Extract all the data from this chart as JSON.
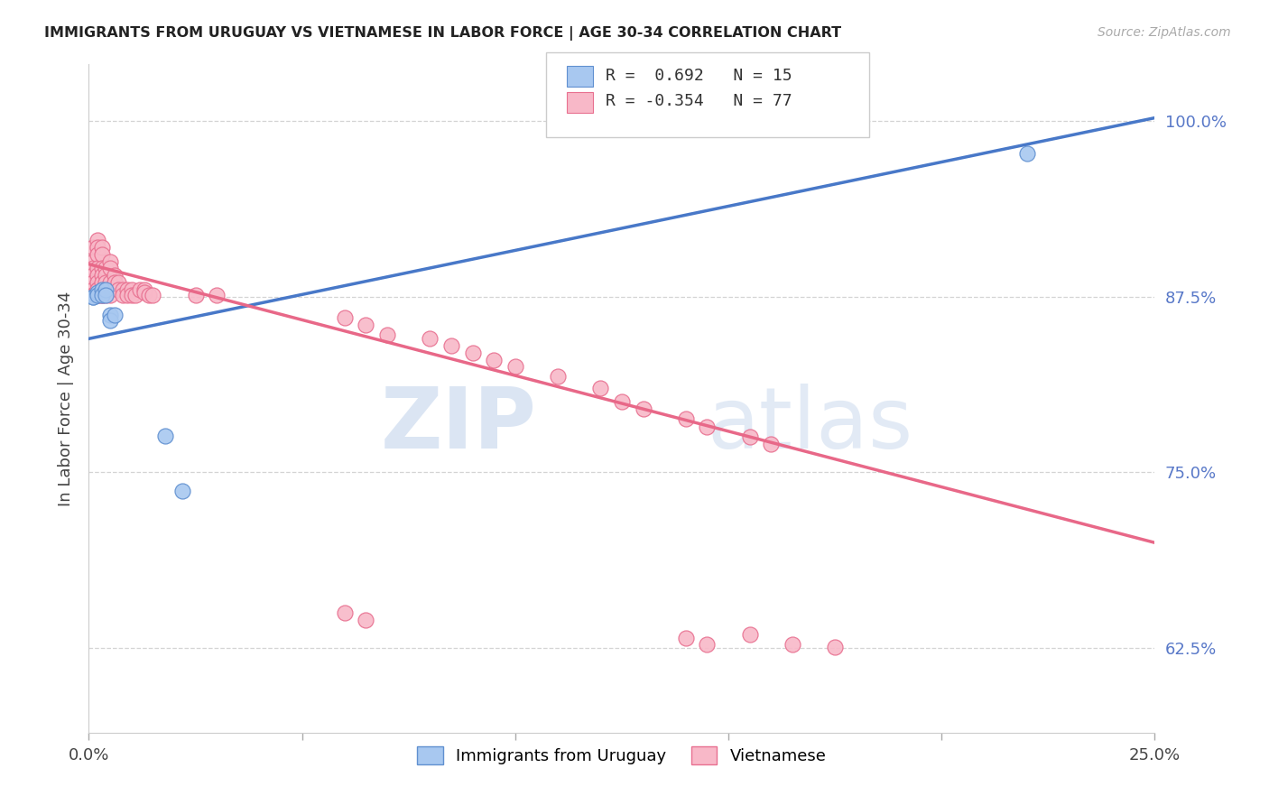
{
  "title": "IMMIGRANTS FROM URUGUAY VS VIETNAMESE IN LABOR FORCE | AGE 30-34 CORRELATION CHART",
  "source": "Source: ZipAtlas.com",
  "ylabel": "In Labor Force | Age 30-34",
  "yticks": [
    0.625,
    0.75,
    0.875,
    1.0
  ],
  "ytick_labels": [
    "62.5%",
    "75.0%",
    "87.5%",
    "100.0%"
  ],
  "xticks": [
    0.0,
    0.05,
    0.1,
    0.15,
    0.2,
    0.25
  ],
  "xmin": 0.0,
  "xmax": 0.25,
  "ymin": 0.565,
  "ymax": 1.04,
  "watermark_line1": "ZIP",
  "watermark_line2": "atlas",
  "uruguay_color": "#a8c8f0",
  "vietnamese_color": "#f8b8c8",
  "uruguay_edge_color": "#6090d0",
  "vietnamese_edge_color": "#e87090",
  "blue_line_color": "#4878c8",
  "pink_line_color": "#e86888",
  "grid_color": "#d0d0d0",
  "tick_label_color": "#5878c8",
  "uruguay_points": [
    [
      0.001,
      0.875
    ],
    [
      0.001,
      0.875
    ],
    [
      0.002,
      0.878
    ],
    [
      0.002,
      0.876
    ],
    [
      0.003,
      0.88
    ],
    [
      0.003,
      0.876
    ],
    [
      0.004,
      0.88
    ],
    [
      0.004,
      0.876
    ],
    [
      0.005,
      0.862
    ],
    [
      0.005,
      0.858
    ],
    [
      0.006,
      0.862
    ],
    [
      0.018,
      0.776
    ],
    [
      0.022,
      0.737
    ],
    [
      0.22,
      0.977
    ]
  ],
  "vietnamese_points": [
    [
      0.001,
      0.91
    ],
    [
      0.001,
      0.9
    ],
    [
      0.001,
      0.895
    ],
    [
      0.001,
      0.89
    ],
    [
      0.001,
      0.885
    ],
    [
      0.001,
      0.88
    ],
    [
      0.001,
      0.876
    ],
    [
      0.001,
      0.876
    ],
    [
      0.002,
      0.915
    ],
    [
      0.002,
      0.91
    ],
    [
      0.002,
      0.905
    ],
    [
      0.002,
      0.895
    ],
    [
      0.002,
      0.89
    ],
    [
      0.002,
      0.885
    ],
    [
      0.002,
      0.88
    ],
    [
      0.002,
      0.88
    ],
    [
      0.002,
      0.876
    ],
    [
      0.002,
      0.876
    ],
    [
      0.002,
      0.876
    ],
    [
      0.003,
      0.91
    ],
    [
      0.003,
      0.905
    ],
    [
      0.003,
      0.895
    ],
    [
      0.003,
      0.89
    ],
    [
      0.003,
      0.885
    ],
    [
      0.003,
      0.88
    ],
    [
      0.003,
      0.876
    ],
    [
      0.003,
      0.876
    ],
    [
      0.004,
      0.895
    ],
    [
      0.004,
      0.89
    ],
    [
      0.004,
      0.885
    ],
    [
      0.004,
      0.88
    ],
    [
      0.004,
      0.876
    ],
    [
      0.005,
      0.9
    ],
    [
      0.005,
      0.895
    ],
    [
      0.005,
      0.885
    ],
    [
      0.005,
      0.88
    ],
    [
      0.005,
      0.876
    ],
    [
      0.006,
      0.89
    ],
    [
      0.006,
      0.885
    ],
    [
      0.007,
      0.885
    ],
    [
      0.007,
      0.88
    ],
    [
      0.008,
      0.88
    ],
    [
      0.008,
      0.876
    ],
    [
      0.009,
      0.88
    ],
    [
      0.009,
      0.876
    ],
    [
      0.01,
      0.88
    ],
    [
      0.01,
      0.876
    ],
    [
      0.011,
      0.876
    ],
    [
      0.012,
      0.88
    ],
    [
      0.013,
      0.88
    ],
    [
      0.013,
      0.878
    ],
    [
      0.014,
      0.876
    ],
    [
      0.015,
      0.876
    ],
    [
      0.025,
      0.876
    ],
    [
      0.03,
      0.876
    ],
    [
      0.06,
      0.86
    ],
    [
      0.065,
      0.855
    ],
    [
      0.07,
      0.848
    ],
    [
      0.08,
      0.845
    ],
    [
      0.085,
      0.84
    ],
    [
      0.09,
      0.835
    ],
    [
      0.095,
      0.83
    ],
    [
      0.1,
      0.825
    ],
    [
      0.11,
      0.818
    ],
    [
      0.12,
      0.81
    ],
    [
      0.125,
      0.8
    ],
    [
      0.13,
      0.795
    ],
    [
      0.14,
      0.788
    ],
    [
      0.145,
      0.782
    ],
    [
      0.155,
      0.775
    ],
    [
      0.16,
      0.77
    ],
    [
      0.14,
      0.632
    ],
    [
      0.145,
      0.628
    ],
    [
      0.155,
      0.635
    ],
    [
      0.06,
      0.65
    ],
    [
      0.065,
      0.645
    ],
    [
      0.165,
      0.628
    ],
    [
      0.175,
      0.626
    ]
  ],
  "blue_trendline_x": [
    0.0,
    0.25
  ],
  "blue_trendline_y": [
    0.845,
    1.002
  ],
  "pink_trendline_x": [
    0.0,
    0.25
  ],
  "pink_trendline_y": [
    0.898,
    0.7
  ]
}
